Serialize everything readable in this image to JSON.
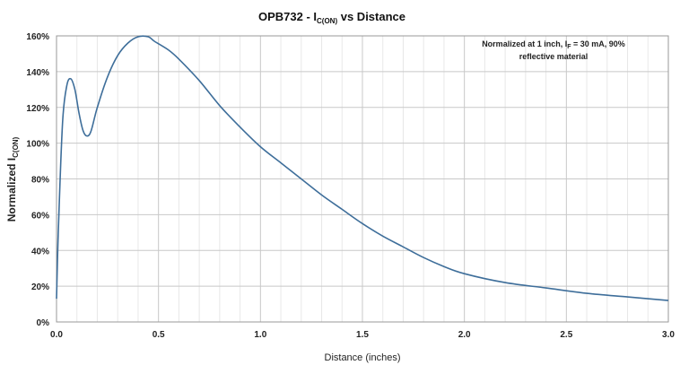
{
  "chart_data": {
    "type": "line",
    "title": {
      "prefix": "OPB732 - I",
      "subscript": "C(ON)",
      "suffix": " vs Distance"
    },
    "xlabel": "Distance (inches)",
    "ylabel": {
      "prefix": "Normalized I",
      "subscript": "C(ON)"
    },
    "annotation": {
      "line1_prefix": "Normalized at 1 inch, I",
      "line1_subscript": "F",
      "line1_suffix": " = 30 mA, 90%",
      "line2": "reflective material"
    },
    "xlim": [
      0,
      3.0
    ],
    "ylim": [
      0,
      160
    ],
    "x_ticks": [
      0.0,
      0.5,
      1.0,
      1.5,
      2.0,
      2.5,
      3.0
    ],
    "x_tick_labels": [
      "0.0",
      "0.5",
      "1.0",
      "1.5",
      "2.0",
      "2.5",
      "3.0"
    ],
    "y_ticks": [
      0,
      20,
      40,
      60,
      80,
      100,
      120,
      140,
      160
    ],
    "y_tick_labels": [
      "0%",
      "20%",
      "40%",
      "60%",
      "80%",
      "100%",
      "120%",
      "140%",
      "160%"
    ],
    "grid": true,
    "legend": "none",
    "series": [
      {
        "color": "#3e6e9a",
        "x": [
          0.0,
          0.01,
          0.03,
          0.05,
          0.07,
          0.09,
          0.11,
          0.13,
          0.15,
          0.17,
          0.2,
          0.25,
          0.3,
          0.35,
          0.4,
          0.45,
          0.48,
          0.55,
          0.6,
          0.7,
          0.8,
          0.9,
          1.0,
          1.1,
          1.2,
          1.3,
          1.4,
          1.5,
          1.6,
          1.7,
          1.8,
          1.9,
          2.0,
          2.2,
          2.4,
          2.6,
          2.8,
          3.0
        ],
        "y": [
          13,
          55,
          112,
          132,
          136,
          130,
          117,
          107,
          104,
          107,
          120,
          137,
          149,
          156,
          159.5,
          159.5,
          157,
          152,
          147,
          135,
          121,
          109,
          98,
          89,
          80,
          71,
          63,
          55,
          48,
          42,
          36,
          31,
          27,
          22,
          19,
          16,
          14,
          12
        ]
      }
    ]
  }
}
